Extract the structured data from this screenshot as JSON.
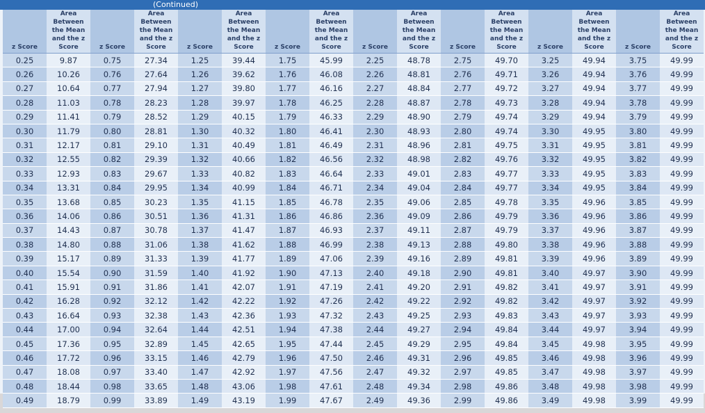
{
  "header": {
    "caption": "(Continued)"
  },
  "table": {
    "columns": [
      "z Score",
      "Area Between the Mean and the z Score",
      "z Score",
      "Area Between the Mean and the z Score",
      "z Score",
      "Area Between the Mean and the z Score",
      "z Score",
      "Area Between the Mean and the z Score",
      "z Score",
      "Area Between the Mean and the z Score",
      "z Score",
      "Area Between the Mean and the z Score",
      "z Score",
      "Area Between the Mean and the z Score",
      "z Score",
      "Area Between the Mean and the z Score"
    ],
    "rows": [
      [
        "0.25",
        "9.87",
        "0.75",
        "27.34",
        "1.25",
        "39.44",
        "1.75",
        "45.99",
        "2.25",
        "48.78",
        "2.75",
        "49.70",
        "3.25",
        "49.94",
        "3.75",
        "49.99"
      ],
      [
        "0.26",
        "10.26",
        "0.76",
        "27.64",
        "1.26",
        "39.62",
        "1.76",
        "46.08",
        "2.26",
        "48.81",
        "2.76",
        "49.71",
        "3.26",
        "49.94",
        "3.76",
        "49.99"
      ],
      [
        "0.27",
        "10.64",
        "0.77",
        "27.94",
        "1.27",
        "39.80",
        "1.77",
        "46.16",
        "2.27",
        "48.84",
        "2.77",
        "49.72",
        "3.27",
        "49.94",
        "3.77",
        "49.99"
      ],
      [
        "0.28",
        "11.03",
        "0.78",
        "28.23",
        "1.28",
        "39.97",
        "1.78",
        "46.25",
        "2.28",
        "48.87",
        "2.78",
        "49.73",
        "3.28",
        "49.94",
        "3.78",
        "49.99"
      ],
      [
        "0.29",
        "11.41",
        "0.79",
        "28.52",
        "1.29",
        "40.15",
        "1.79",
        "46.33",
        "2.29",
        "48.90",
        "2.79",
        "49.74",
        "3.29",
        "49.94",
        "3.79",
        "49.99"
      ],
      [
        "0.30",
        "11.79",
        "0.80",
        "28.81",
        "1.30",
        "40.32",
        "1.80",
        "46.41",
        "2.30",
        "48.93",
        "2.80",
        "49.74",
        "3.30",
        "49.95",
        "3.80",
        "49.99"
      ],
      [
        "0.31",
        "12.17",
        "0.81",
        "29.10",
        "1.31",
        "40.49",
        "1.81",
        "46.49",
        "2.31",
        "48.96",
        "2.81",
        "49.75",
        "3.31",
        "49.95",
        "3.81",
        "49.99"
      ],
      [
        "0.32",
        "12.55",
        "0.82",
        "29.39",
        "1.32",
        "40.66",
        "1.82",
        "46.56",
        "2.32",
        "48.98",
        "2.82",
        "49.76",
        "3.32",
        "49.95",
        "3.82",
        "49.99"
      ],
      [
        "0.33",
        "12.93",
        "0.83",
        "29.67",
        "1.33",
        "40.82",
        "1.83",
        "46.64",
        "2.33",
        "49.01",
        "2.83",
        "49.77",
        "3.33",
        "49.95",
        "3.83",
        "49.99"
      ],
      [
        "0.34",
        "13.31",
        "0.84",
        "29.95",
        "1.34",
        "40.99",
        "1.84",
        "46.71",
        "2.34",
        "49.04",
        "2.84",
        "49.77",
        "3.34",
        "49.95",
        "3.84",
        "49.99"
      ],
      [
        "0.35",
        "13.68",
        "0.85",
        "30.23",
        "1.35",
        "41.15",
        "1.85",
        "46.78",
        "2.35",
        "49.06",
        "2.85",
        "49.78",
        "3.35",
        "49.96",
        "3.85",
        "49.99"
      ],
      [
        "0.36",
        "14.06",
        "0.86",
        "30.51",
        "1.36",
        "41.31",
        "1.86",
        "46.86",
        "2.36",
        "49.09",
        "2.86",
        "49.79",
        "3.36",
        "49.96",
        "3.86",
        "49.99"
      ],
      [
        "0.37",
        "14.43",
        "0.87",
        "30.78",
        "1.37",
        "41.47",
        "1.87",
        "46.93",
        "2.37",
        "49.11",
        "2.87",
        "49.79",
        "3.37",
        "49.96",
        "3.87",
        "49.99"
      ],
      [
        "0.38",
        "14.80",
        "0.88",
        "31.06",
        "1.38",
        "41.62",
        "1.88",
        "46.99",
        "2.38",
        "49.13",
        "2.88",
        "49.80",
        "3.38",
        "49.96",
        "3.88",
        "49.99"
      ],
      [
        "0.39",
        "15.17",
        "0.89",
        "31.33",
        "1.39",
        "41.77",
        "1.89",
        "47.06",
        "2.39",
        "49.16",
        "2.89",
        "49.81",
        "3.39",
        "49.96",
        "3.89",
        "49.99"
      ],
      [
        "0.40",
        "15.54",
        "0.90",
        "31.59",
        "1.40",
        "41.92",
        "1.90",
        "47.13",
        "2.40",
        "49.18",
        "2.90",
        "49.81",
        "3.40",
        "49.97",
        "3.90",
        "49.99"
      ],
      [
        "0.41",
        "15.91",
        "0.91",
        "31.86",
        "1.41",
        "42.07",
        "1.91",
        "47.19",
        "2.41",
        "49.20",
        "2.91",
        "49.82",
        "3.41",
        "49.97",
        "3.91",
        "49.99"
      ],
      [
        "0.42",
        "16.28",
        "0.92",
        "32.12",
        "1.42",
        "42.22",
        "1.92",
        "47.26",
        "2.42",
        "49.22",
        "2.92",
        "49.82",
        "3.42",
        "49.97",
        "3.92",
        "49.99"
      ],
      [
        "0.43",
        "16.64",
        "0.93",
        "32.38",
        "1.43",
        "42.36",
        "1.93",
        "47.32",
        "2.43",
        "49.25",
        "2.93",
        "49.83",
        "3.43",
        "49.97",
        "3.93",
        "49.99"
      ],
      [
        "0.44",
        "17.00",
        "0.94",
        "32.64",
        "1.44",
        "42.51",
        "1.94",
        "47.38",
        "2.44",
        "49.27",
        "2.94",
        "49.84",
        "3.44",
        "49.97",
        "3.94",
        "49.99"
      ],
      [
        "0.45",
        "17.36",
        "0.95",
        "32.89",
        "1.45",
        "42.65",
        "1.95",
        "47.44",
        "2.45",
        "49.29",
        "2.95",
        "49.84",
        "3.45",
        "49.98",
        "3.95",
        "49.99"
      ],
      [
        "0.46",
        "17.72",
        "0.96",
        "33.15",
        "1.46",
        "42.79",
        "1.96",
        "47.50",
        "2.46",
        "49.31",
        "2.96",
        "49.85",
        "3.46",
        "49.98",
        "3.96",
        "49.99"
      ],
      [
        "0.47",
        "18.08",
        "0.97",
        "33.40",
        "1.47",
        "42.92",
        "1.97",
        "47.56",
        "2.47",
        "49.32",
        "2.97",
        "49.85",
        "3.47",
        "49.98",
        "3.97",
        "49.99"
      ],
      [
        "0.48",
        "18.44",
        "0.98",
        "33.65",
        "1.48",
        "43.06",
        "1.98",
        "47.61",
        "2.48",
        "49.34",
        "2.98",
        "49.86",
        "3.48",
        "49.98",
        "3.98",
        "49.99"
      ],
      [
        "0.49",
        "18.79",
        "0.99",
        "33.89",
        "1.49",
        "43.19",
        "1.99",
        "47.67",
        "2.49",
        "49.36",
        "2.99",
        "49.86",
        "3.49",
        "49.98",
        "3.99",
        "49.99"
      ]
    ]
  }
}
